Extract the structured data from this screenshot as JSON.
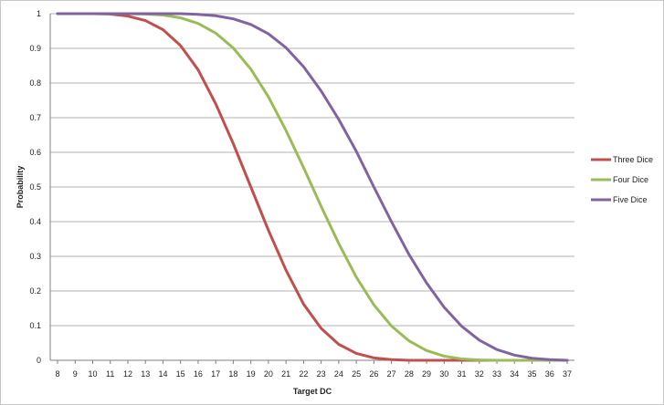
{
  "chart_data": {
    "type": "line",
    "title": "",
    "xlabel": "Target DC",
    "ylabel": "Probability",
    "x": [
      8,
      9,
      10,
      11,
      12,
      13,
      14,
      15,
      16,
      17,
      18,
      19,
      20,
      21,
      22,
      23,
      24,
      25,
      26,
      27,
      28,
      29,
      30,
      31,
      32,
      33,
      34,
      35,
      36,
      37
    ],
    "ylim": [
      0,
      1
    ],
    "yticks": [
      "0",
      "0.1",
      "0.2",
      "0.3",
      "0.4",
      "0.5",
      "0.6",
      "0.7",
      "0.8",
      "0.9",
      "1"
    ],
    "grid": "horizontal",
    "legend_position": "right",
    "series": [
      {
        "name": "Three Dice",
        "color": "#c0504d",
        "values": [
          1,
          1,
          1,
          0.999,
          0.993,
          0.98,
          0.954,
          0.908,
          0.838,
          0.74,
          0.625,
          0.5,
          0.375,
          0.26,
          0.162,
          0.092,
          0.046,
          0.02,
          0.007,
          0.002,
          0,
          0,
          0,
          0,
          0,
          0,
          0,
          0,
          0,
          0
        ]
      },
      {
        "name": "Four Dice",
        "color": "#9bbb59",
        "values": [
          1,
          1,
          1,
          1,
          1,
          0.999,
          0.996,
          0.988,
          0.972,
          0.944,
          0.901,
          0.84,
          0.76,
          0.663,
          0.556,
          0.444,
          0.337,
          0.24,
          0.16,
          0.099,
          0.056,
          0.028,
          0.012,
          0.004,
          0.001,
          0,
          0,
          0,
          0,
          0
        ]
      },
      {
        "name": "Five Dice",
        "color": "#8064a2",
        "values": [
          1,
          1,
          1,
          1,
          1,
          1,
          1,
          1,
          0.998,
          0.994,
          0.985,
          0.969,
          0.942,
          0.902,
          0.847,
          0.777,
          0.695,
          0.603,
          0.5,
          0.4,
          0.305,
          0.223,
          0.153,
          0.098,
          0.058,
          0.031,
          0.015,
          0.006,
          0.002,
          0
        ]
      }
    ]
  }
}
